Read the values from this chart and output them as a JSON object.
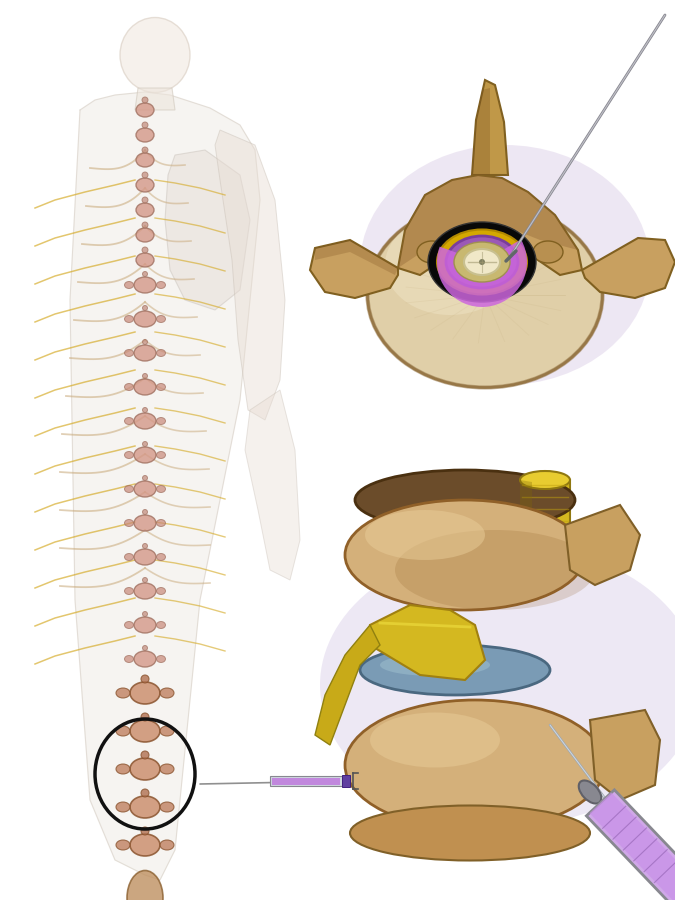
{
  "background_color": "#ffffff",
  "figure_width": 6.75,
  "figure_height": 9.0,
  "dpi": 100,
  "vertebra_tan": "#d4b896",
  "vertebra_dark": "#8b6914",
  "vertebra_light": "#e8d4b0",
  "vertebra_shadow": "#c8a060",
  "body_skin": "#e8d5c4",
  "body_transparent": "#f0e8e0",
  "nerve_yellow": "#d4a820",
  "nerve_light": "#e8c840",
  "disc_blue": "#7a9bb5",
  "disc_blue2": "#5a8aaa",
  "canal_black": "#080808",
  "ligament_yellow": "#d4b020",
  "dura_purple": "#9b59b6",
  "dura_purple2": "#cc88dd",
  "cord_cream": "#f0e8c8",
  "cord_white": "#f5f0e0",
  "needle_silver": "#a0a8b0",
  "needle_dark": "#707880",
  "syringe_purple": "#b070cc",
  "syringe_light_purple": "#d0a0e8",
  "syringe_gray": "#c0c8d0",
  "syringe_dark_gray": "#808890",
  "spine_pink": "#d4987a",
  "spine_pink2": "#c07060",
  "muscle_tan": "#c8956a",
  "bone_yellow": "#e8c840",
  "bone_brown": "#8b6030",
  "shadow_lavender": "#d8cce8",
  "shadow_gray": "#c0c4cc",
  "rib_color": "#c8a878",
  "skin_overlay": "#f5ede8"
}
